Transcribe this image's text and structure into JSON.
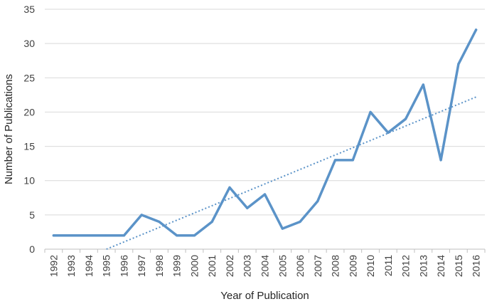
{
  "chart_data": {
    "type": "line",
    "title": "",
    "xlabel": "Year of Publication",
    "ylabel": "Number of Publications",
    "ylim": [
      0,
      35
    ],
    "yticks": [
      0,
      5,
      10,
      15,
      20,
      25,
      30,
      35
    ],
    "grid": "horizontal",
    "legend": "none",
    "categories": [
      "1992",
      "1993",
      "1994",
      "1995",
      "1996",
      "1997",
      "1998",
      "1999",
      "2000",
      "2001",
      "2002",
      "2003",
      "2004",
      "2005",
      "2006",
      "2007",
      "2008",
      "2009",
      "2010",
      "2011",
      "2012",
      "2013",
      "2014",
      "2015",
      "2016"
    ],
    "series": [
      {
        "values": [
          2,
          2,
          2,
          2,
          2,
          5,
          4,
          2,
          2,
          4,
          9,
          6,
          8,
          3,
          4,
          7,
          13,
          13,
          20,
          17,
          19,
          24,
          13,
          27,
          32
        ],
        "color": "#5B93C8",
        "style": "solid"
      }
    ],
    "trendline": {
      "type": "linear",
      "style": "dotted",
      "color": "#5B93C8",
      "from_category": "1995",
      "to_category": "2016",
      "start_value": 0,
      "end_value": 22.2
    }
  }
}
